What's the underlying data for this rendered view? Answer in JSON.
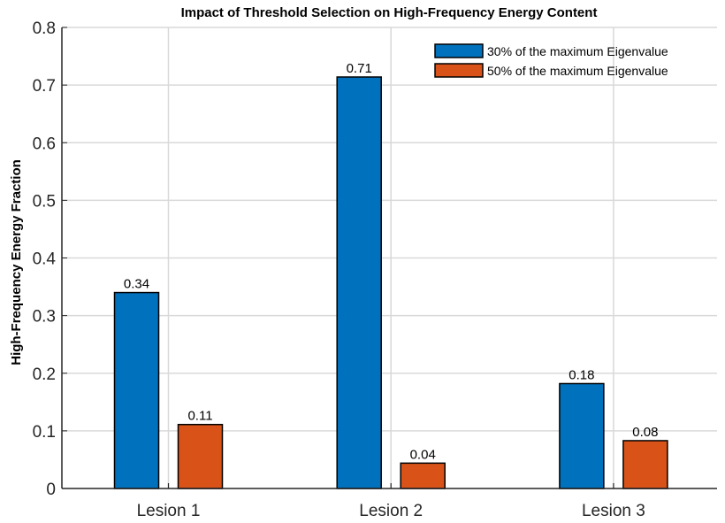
{
  "chart_data": {
    "type": "bar",
    "title": "Impact of Threshold Selection on High-Frequency Energy Content",
    "xlabel": "",
    "ylabel": "High-Frequency Energy Fraction",
    "categories": [
      "Lesion 1",
      "Lesion 2",
      "Lesion 3"
    ],
    "series": [
      {
        "name": "30% of the maximum Eigenvalue",
        "values": [
          0.34,
          0.714,
          0.182
        ],
        "labels": [
          "0.34",
          "0.71",
          "0.18"
        ],
        "color": "#0072BD"
      },
      {
        "name": "50% of the maximum Eigenvalue",
        "values": [
          0.111,
          0.044,
          0.083
        ],
        "labels": [
          "0.11",
          "0.04",
          "0.08"
        ],
        "color": "#D95319"
      }
    ],
    "ylim": [
      0,
      0.8
    ],
    "yticks": [
      "0",
      "0.1",
      "0.2",
      "0.3",
      "0.4",
      "0.5",
      "0.6",
      "0.7",
      "0.8"
    ],
    "grid": true,
    "legend_position": "top-right"
  }
}
